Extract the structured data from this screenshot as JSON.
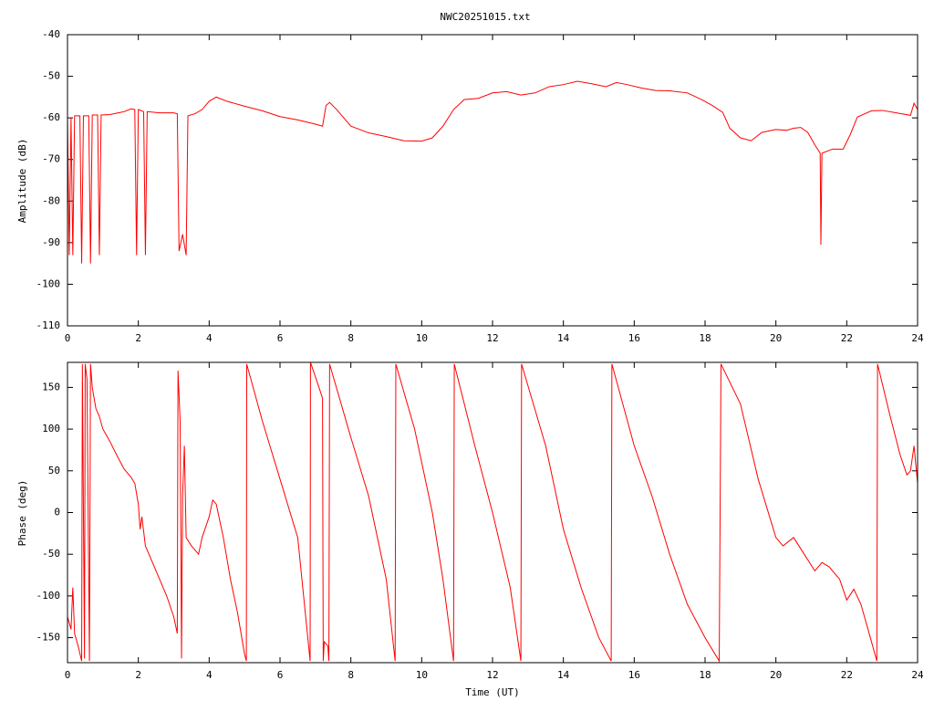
{
  "chart_data": [
    {
      "type": "line",
      "title": "NWC20251015.txt",
      "y_label": "Amplitude (dB)",
      "xlim": [
        0,
        24
      ],
      "xticks": [
        0,
        2,
        4,
        6,
        8,
        10,
        12,
        14,
        16,
        18,
        20,
        22,
        24
      ],
      "ylim": [
        -110,
        -40
      ],
      "yticks": [
        -110,
        -100,
        -90,
        -80,
        -70,
        -60,
        -50,
        -40
      ],
      "grid": false,
      "color": "#ff0000",
      "x": [
        0,
        0.05,
        0.1,
        0.15,
        0.2,
        0.35,
        0.4,
        0.45,
        0.6,
        0.65,
        0.7,
        0.85,
        0.9,
        0.95,
        1.2,
        1.6,
        1.8,
        1.9,
        1.95,
        2.0,
        2.15,
        2.2,
        2.25,
        2.6,
        3.0,
        3.1,
        3.15,
        3.25,
        3.35,
        3.4,
        3.6,
        3.8,
        4.0,
        4.2,
        4.5,
        5,
        5.5,
        6,
        6.5,
        7.0,
        7.2,
        7.3,
        7.4,
        7.6,
        8,
        8.5,
        9,
        9.5,
        10,
        10.3,
        10.6,
        10.9,
        11.2,
        11.6,
        12,
        12.4,
        12.8,
        13.2,
        13.6,
        14,
        14.4,
        14.8,
        15.2,
        15.5,
        15.8,
        16.2,
        16.6,
        17,
        17.5,
        17.9,
        18.2,
        18.5,
        18.7,
        19,
        19.3,
        19.6,
        20,
        20.3,
        20.5,
        20.7,
        20.9,
        21.1,
        21.25,
        21.27,
        21.3,
        21.6,
        21.9,
        22.1,
        22.3,
        22.7,
        23,
        23.4,
        23.8,
        23.9,
        24
      ],
      "values": [
        -60,
        -93,
        -60,
        -93,
        -59.5,
        -59.5,
        -95,
        -59.5,
        -59.5,
        -95,
        -59.3,
        -59.3,
        -93,
        -59.3,
        -59.2,
        -58.5,
        -57.8,
        -58,
        -93,
        -58,
        -58.5,
        -93,
        -58.5,
        -58.8,
        -58.8,
        -59,
        -92,
        -88,
        -93,
        -59.5,
        -59,
        -58,
        -56,
        -55,
        -56,
        -57.2,
        -58.3,
        -59.7,
        -60.5,
        -61.5,
        -62,
        -57,
        -56.3,
        -58,
        -62,
        -63.6,
        -64.5,
        -65.5,
        -65.6,
        -64.8,
        -62,
        -58,
        -55.6,
        -55.3,
        -54,
        -53.7,
        -54.5,
        -54,
        -52.5,
        -52,
        -51.2,
        -51.8,
        -52.5,
        -51.5,
        -52,
        -52.8,
        -53.4,
        -53.5,
        -54,
        -55.6,
        -57,
        -58.7,
        -62.5,
        -64.8,
        -65.5,
        -63.5,
        -62.8,
        -63,
        -62.5,
        -62.3,
        -63.5,
        -66.5,
        -68.5,
        -90.5,
        -68.5,
        -67.5,
        -67.5,
        -64,
        -59.8,
        -58.3,
        -58.2,
        -58.8,
        -59.4,
        -56.5,
        -58
      ]
    },
    {
      "type": "line",
      "y_label": "Phase (deg)",
      "x_label": "Time (UT)",
      "xlim": [
        0,
        24
      ],
      "xticks": [
        0,
        2,
        4,
        6,
        8,
        10,
        12,
        14,
        16,
        18,
        20,
        22,
        24
      ],
      "ylim": [
        -180,
        180
      ],
      "yticks": [
        -150,
        -100,
        -50,
        0,
        50,
        100,
        150
      ],
      "grid": false,
      "color": "#ff0000",
      "x": [
        0,
        0.1,
        0.15,
        0.2,
        0.3,
        0.4,
        0.42,
        0.48,
        0.5,
        0.55,
        0.62,
        0.65,
        0.7,
        0.8,
        0.9,
        1.0,
        1.2,
        1.4,
        1.6,
        1.8,
        1.9,
        2.0,
        2.05,
        2.1,
        2.2,
        2.4,
        2.6,
        2.8,
        3.0,
        3.1,
        3.12,
        3.18,
        3.22,
        3.25,
        3.3,
        3.35,
        3.5,
        3.7,
        3.8,
        4.0,
        4.1,
        4.2,
        4.4,
        4.6,
        4.8,
        5.0,
        5.05,
        5.06,
        5.5,
        6,
        6.5,
        6.85,
        6.86,
        7.1,
        7.2,
        7.22,
        7.25,
        7.35,
        7.38,
        7.4,
        8,
        8.5,
        9,
        9.25,
        9.27,
        9.8,
        10.3,
        10.6,
        10.9,
        10.92,
        11.5,
        12,
        12.5,
        12.8,
        12.82,
        13.5,
        14,
        14.5,
        15,
        15.35,
        15.37,
        16,
        16.5,
        17,
        17.5,
        18,
        18.4,
        18.45,
        19,
        19.5,
        20,
        20.2,
        20.5,
        20.8,
        21.1,
        21.3,
        21.5,
        21.8,
        22.0,
        22.2,
        22.4,
        22.6,
        22.85,
        22.87,
        23.2,
        23.5,
        23.7,
        23.8,
        23.9,
        24
      ],
      "values": [
        -125,
        -140,
        -90,
        -145,
        -160,
        -178,
        178,
        -175,
        178,
        160,
        -178,
        178,
        150,
        125,
        115,
        100,
        85,
        68,
        52,
        42,
        35,
        10,
        -20,
        -5,
        -40,
        -60,
        -80,
        -100,
        -125,
        -145,
        170,
        110,
        -175,
        20,
        80,
        -30,
        -40,
        -50,
        -30,
        -5,
        15,
        10,
        -30,
        -80,
        -120,
        -170,
        -178,
        178,
        110,
        40,
        -30,
        -178,
        180,
        150,
        137,
        -178,
        -155,
        -160,
        -178,
        178,
        90,
        20,
        -80,
        -178,
        178,
        100,
        0,
        -80,
        -178,
        178,
        80,
        0,
        -90,
        -178,
        178,
        80,
        -20,
        -90,
        -150,
        -178,
        178,
        80,
        20,
        -50,
        -110,
        -150,
        -178,
        178,
        130,
        40,
        -30,
        -40,
        -30,
        -50,
        -70,
        -60,
        -65,
        -80,
        -105,
        -92,
        -110,
        -140,
        -178,
        178,
        120,
        70,
        45,
        50,
        80,
        35
      ]
    }
  ]
}
